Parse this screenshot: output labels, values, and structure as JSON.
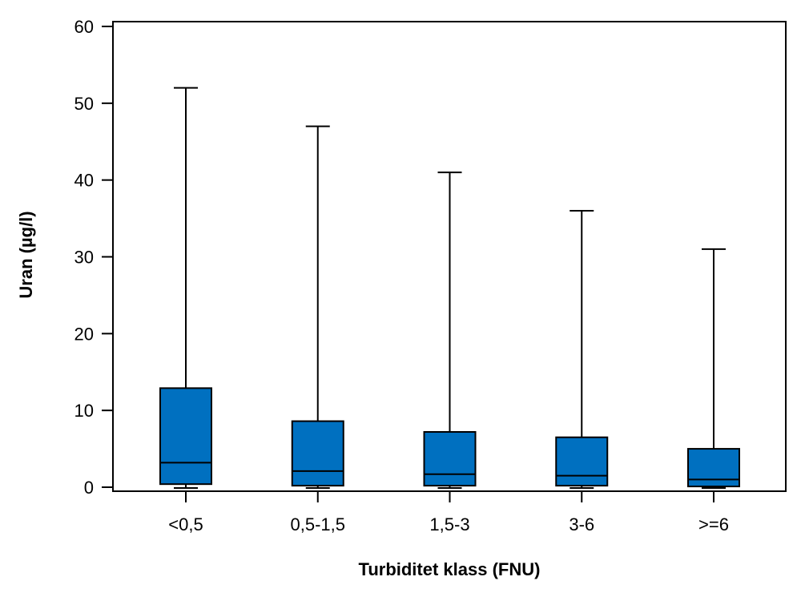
{
  "chart_data": {
    "type": "box",
    "xlabel": "Turbiditet klass (FNU)",
    "ylabel": "Uran (µg/l)",
    "ylim": [
      0,
      60
    ],
    "yticks": [
      "0",
      "10",
      "20",
      "30",
      "40",
      "50",
      "60"
    ],
    "categories": [
      "<0,5",
      "0,5-1,5",
      "1,5-3",
      "3-6",
      ">=6"
    ],
    "boxes": [
      {
        "category": "<0,5",
        "min": 0,
        "q1": 0.4,
        "median": 3.2,
        "q3": 12.9,
        "max": 52
      },
      {
        "category": "0,5-1,5",
        "min": 0,
        "q1": 0.2,
        "median": 2.1,
        "q3": 8.6,
        "max": 47
      },
      {
        "category": "1,5-3",
        "min": 0,
        "q1": 0.2,
        "median": 1.7,
        "q3": 7.2,
        "max": 41
      },
      {
        "category": "3-6",
        "min": 0,
        "q1": 0.2,
        "median": 1.5,
        "q3": 6.5,
        "max": 36
      },
      {
        "category": ">=6",
        "min": 0,
        "q1": 0.1,
        "median": 1.0,
        "q3": 5.0,
        "max": 31
      }
    ],
    "box_color": "#0070C0",
    "grid": false,
    "legend": "none"
  }
}
